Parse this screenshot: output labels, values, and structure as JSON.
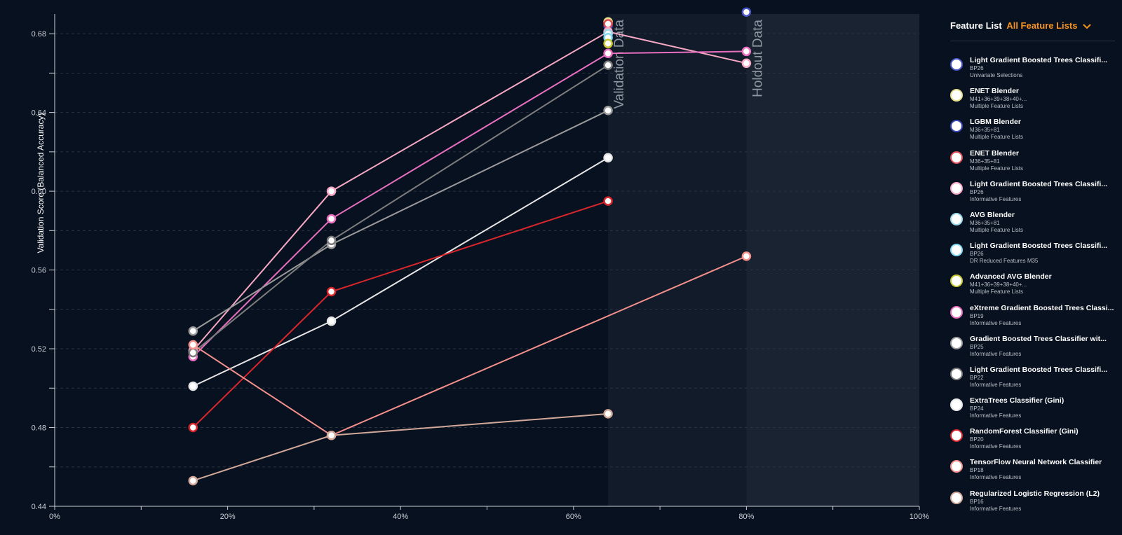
{
  "chart_data": {
    "type": "line",
    "ylabel": "Validation Score (Balanced Accuracy)",
    "xlabel": "",
    "x_ticks": [
      "0%",
      "20%",
      "40%",
      "60%",
      "80%",
      "100%"
    ],
    "y_ticks": [
      "0.44",
      "0.48",
      "0.52",
      "0.56",
      "0.60",
      "0.64",
      "0.68"
    ],
    "xlim": [
      0,
      100
    ],
    "ylim": [
      0.44,
      0.69
    ],
    "grid": "horizontal dashed",
    "zones": [
      {
        "label": "Validation Data",
        "x_start": 64,
        "x_end": 80
      },
      {
        "label": "Holdout Data",
        "x_start": 80,
        "x_end": 100
      }
    ],
    "series": [
      {
        "name": "Light Gradient Boosted Trees Classifi...",
        "color": "#4a56c8",
        "points": [
          [
            80,
            0.691
          ]
        ]
      },
      {
        "name": "ENET Blender",
        "color": "#e8e08c",
        "points": [
          [
            64,
            0.686
          ]
        ]
      },
      {
        "name": "LGBM Blender",
        "color": "#3a46b8",
        "points": [
          [
            64,
            0.684
          ]
        ]
      },
      {
        "name": "ENET Blender",
        "color": "#e04a55",
        "points": [
          [
            64,
            0.685
          ]
        ]
      },
      {
        "name": "Light Gradient Boosted Trees Classifi...",
        "color": "#f7a8c4",
        "points": [
          [
            16,
            0.519
          ],
          [
            32,
            0.6
          ],
          [
            64,
            0.681
          ],
          [
            80,
            0.665
          ]
        ]
      },
      {
        "name": "AVG Blender",
        "color": "#9ad8ea",
        "points": [
          [
            64,
            0.68
          ]
        ]
      },
      {
        "name": "Light Gradient Boosted Trees Classifi...",
        "color": "#7fd8f0",
        "points": [
          [
            64,
            0.678
          ]
        ]
      },
      {
        "name": "Advanced AVG Blender",
        "color": "#c9c832",
        "points": [
          [
            64,
            0.675
          ]
        ]
      },
      {
        "name": "eXtreme Gradient Boosted Trees Classi...",
        "color": "#e86fc0",
        "points": [
          [
            16,
            0.516
          ],
          [
            32,
            0.586
          ],
          [
            64,
            0.67
          ],
          [
            80,
            0.671
          ]
        ]
      },
      {
        "name": "Gradient Boosted Trees Classifier wit...",
        "color": "#9a9a9a",
        "points": [
          [
            16,
            0.529
          ],
          [
            32,
            0.573
          ],
          [
            64,
            0.641
          ]
        ]
      },
      {
        "name": "Light Gradient Boosted Trees Classifi...",
        "color": "#7d7d7d",
        "points": [
          [
            16,
            0.518
          ],
          [
            32,
            0.575
          ],
          [
            64,
            0.664
          ]
        ]
      },
      {
        "name": "ExtraTrees Classifier (Gini)",
        "color": "#e6e6e6",
        "points": [
          [
            16,
            0.501
          ],
          [
            32,
            0.534
          ],
          [
            64,
            0.617
          ]
        ]
      },
      {
        "name": "RandomForest Classifier (Gini)",
        "color": "#d9262c",
        "points": [
          [
            16,
            0.48
          ],
          [
            32,
            0.549
          ],
          [
            64,
            0.595
          ]
        ]
      },
      {
        "name": "TensorFlow Neural Network Classifier",
        "color": "#f4908c",
        "points": [
          [
            16,
            0.522
          ],
          [
            32,
            0.476
          ],
          [
            80,
            0.567
          ]
        ]
      },
      {
        "name": "Regularized Logistic Regression (L2)",
        "color": "#d2a89a",
        "points": [
          [
            16,
            0.453
          ],
          [
            32,
            0.476
          ],
          [
            64,
            0.487
          ]
        ]
      }
    ]
  },
  "legend": {
    "title": "Feature List",
    "selector": "All Feature Lists",
    "items": [
      {
        "name": "Light Gradient Boosted Trees Classifi...",
        "sub1": "BP26",
        "sub2": "Univariate Selections",
        "color": "#4a56c8"
      },
      {
        "name": "ENET Blender",
        "sub1": "M41+36+39+38+40+...",
        "sub2": "Multiple Feature Lists",
        "color": "#e8e08c"
      },
      {
        "name": "LGBM Blender",
        "sub1": "M36+35+81",
        "sub2": "Multiple Feature Lists",
        "color": "#3a46b8"
      },
      {
        "name": "ENET Blender",
        "sub1": "M36+35+81",
        "sub2": "Multiple Feature Lists",
        "color": "#e04a55"
      },
      {
        "name": "Light Gradient Boosted Trees Classifi...",
        "sub1": "BP26",
        "sub2": "Informative Features",
        "color": "#f7a8c4"
      },
      {
        "name": "AVG Blender",
        "sub1": "M36+35+81",
        "sub2": "Multiple Feature Lists",
        "color": "#9ad8ea"
      },
      {
        "name": "Light Gradient Boosted Trees Classifi...",
        "sub1": "BP26",
        "sub2": "DR Reduced Features M35",
        "color": "#7fd8f0"
      },
      {
        "name": "Advanced AVG Blender",
        "sub1": "M41+36+39+38+40+...",
        "sub2": "Multiple Feature Lists",
        "color": "#c9c832"
      },
      {
        "name": "eXtreme Gradient Boosted Trees Classi...",
        "sub1": "BP19",
        "sub2": "Informative Features",
        "color": "#e86fc0"
      },
      {
        "name": "Gradient Boosted Trees Classifier wit...",
        "sub1": "BP25",
        "sub2": "Informative Features",
        "color": "#9a9a9a"
      },
      {
        "name": "Light Gradient Boosted Trees Classifi...",
        "sub1": "BP22",
        "sub2": "Informative Features",
        "color": "#7d7d7d"
      },
      {
        "name": "ExtraTrees Classifier (Gini)",
        "sub1": "BP24",
        "sub2": "Informative Features",
        "color": "#e6e6e6"
      },
      {
        "name": "RandomForest Classifier (Gini)",
        "sub1": "BP20",
        "sub2": "Informative Features",
        "color": "#d9262c"
      },
      {
        "name": "TensorFlow Neural Network Classifier",
        "sub1": "BP18",
        "sub2": "Informative Features",
        "color": "#f4908c"
      },
      {
        "name": "Regularized Logistic Regression (L2)",
        "sub1": "BP16",
        "sub2": "Informative Features",
        "color": "#d2a89a"
      }
    ]
  },
  "icons": {
    "selector_chevron": "chevron-down-icon"
  },
  "colors": {
    "background": "#08111f",
    "accent": "#f7931e",
    "zone": "#1a2331"
  }
}
